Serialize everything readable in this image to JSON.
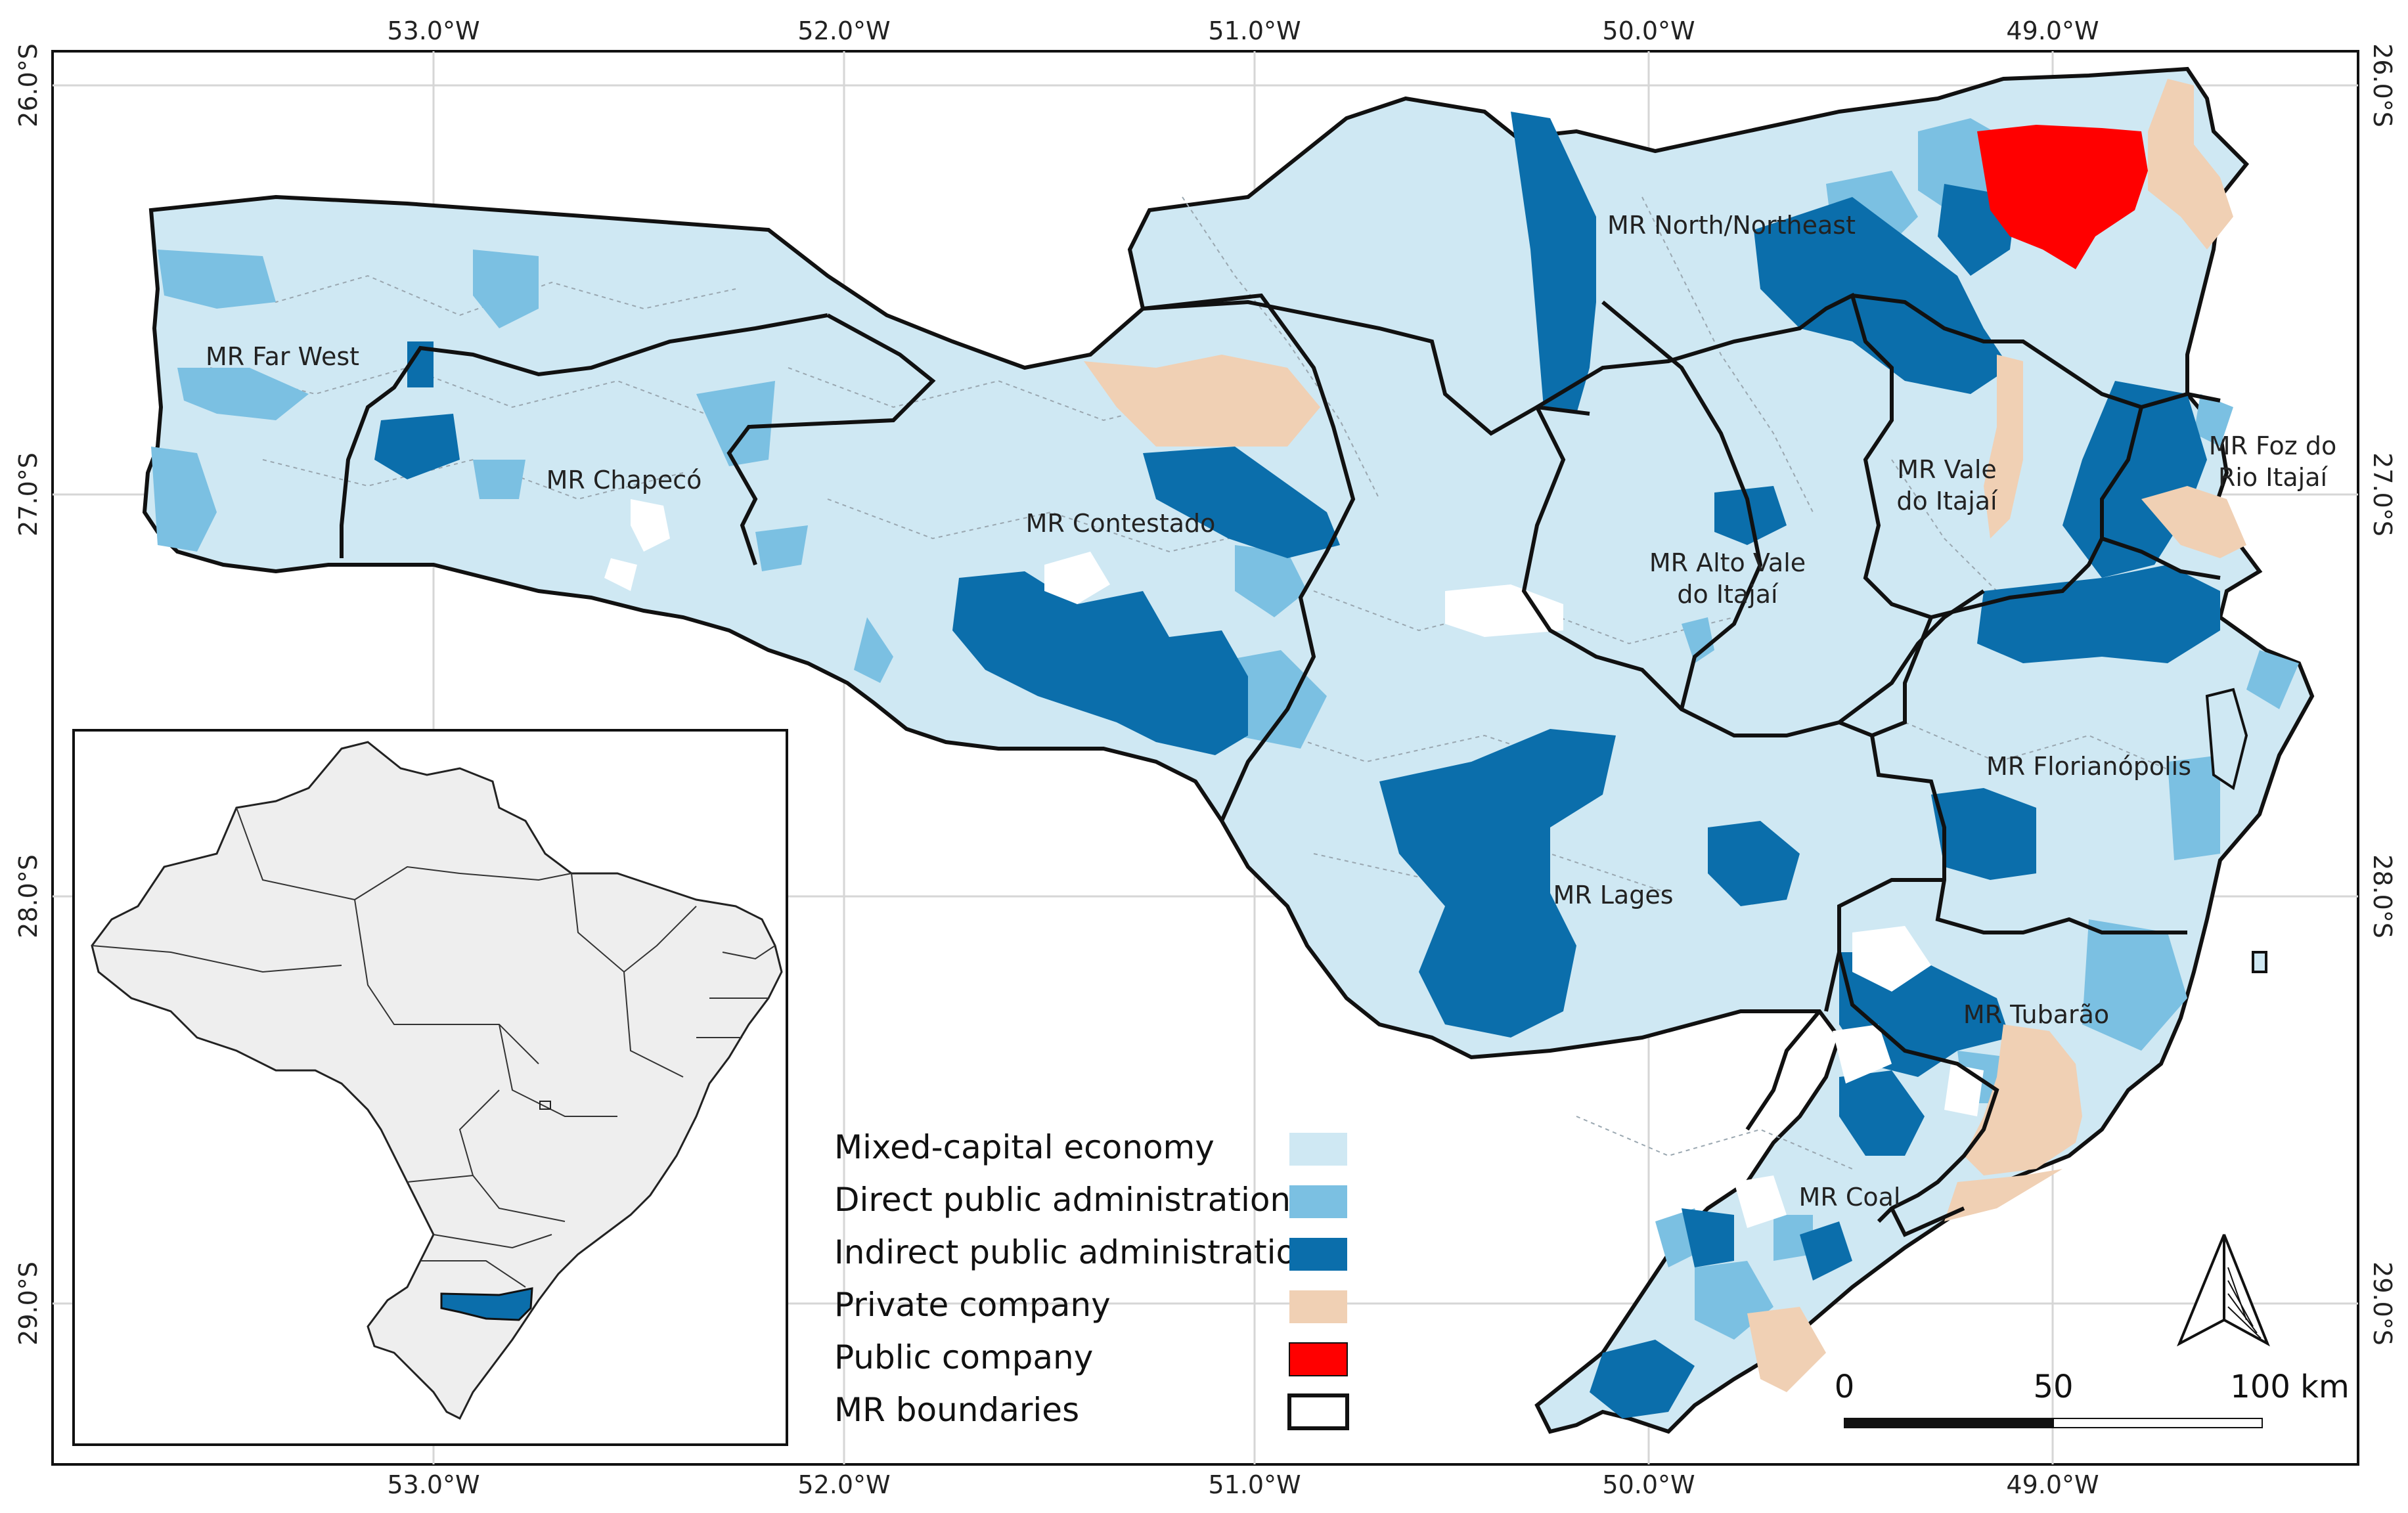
{
  "axes": {
    "longitude_ticks": [
      "53.0°W",
      "52.0°W",
      "51.0°W",
      "50.0°W",
      "49.0°W"
    ],
    "latitude_ticks": [
      "26.0°S",
      "27.0°S",
      "28.0°S",
      "29.0°S"
    ]
  },
  "regions": [
    {
      "key": "far_west",
      "label": "MR Far West"
    },
    {
      "key": "chapeco",
      "label": "MR Chapecó"
    },
    {
      "key": "contestado",
      "label": "MR Contestado"
    },
    {
      "key": "north",
      "label": "MR North/Northeast"
    },
    {
      "key": "alto_vale_1",
      "label": "MR Alto Vale"
    },
    {
      "key": "alto_vale_2",
      "label": "do Itajaí"
    },
    {
      "key": "vale_1",
      "label": "MR Vale"
    },
    {
      "key": "vale_2",
      "label": "do Itajaí"
    },
    {
      "key": "foz_1",
      "label": "MR Foz do"
    },
    {
      "key": "foz_2",
      "label": "Rio Itajaí"
    },
    {
      "key": "florianopolis",
      "label": "MR Florianópolis"
    },
    {
      "key": "lages",
      "label": "MR Lages"
    },
    {
      "key": "tubarao",
      "label": "MR Tubarão"
    },
    {
      "key": "coal",
      "label": "MR Coal"
    }
  ],
  "legend": [
    {
      "label": "Mixed-capital economy",
      "color": "#cfe8f3"
    },
    {
      "label": "Direct public administration",
      "color": "#7bc0e2"
    },
    {
      "label": "Indirect public administration",
      "color": "#0b6eab"
    },
    {
      "label": "Private company",
      "color": "#f0d0b4"
    },
    {
      "label": "Public company",
      "color": "#ff0000"
    },
    {
      "label": "MR boundaries",
      "color": "#ffffff"
    }
  ],
  "scale_bar": {
    "labels": [
      "0",
      "50",
      "100 km"
    ]
  },
  "north_arrow": "north-arrow-icon"
}
